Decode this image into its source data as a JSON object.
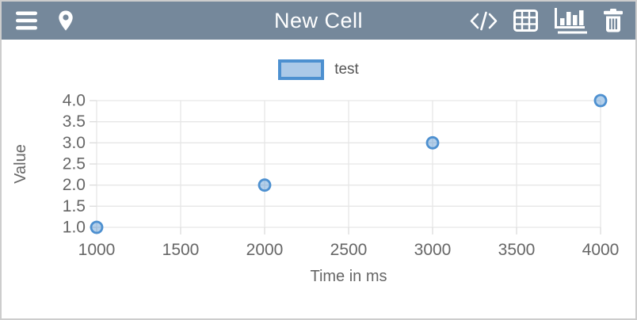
{
  "header": {
    "title": "New Cell",
    "background": "#75889b",
    "left_icons": [
      {
        "name": "menu"
      },
      {
        "name": "location-pin"
      }
    ],
    "right_icons": [
      {
        "name": "code"
      },
      {
        "name": "table"
      },
      {
        "name": "bar-chart",
        "active": true
      },
      {
        "name": "trash"
      }
    ]
  },
  "legend": {
    "label": "test",
    "box_border": "#4d90d0",
    "box_fill": "#abc9e8"
  },
  "chart_data": {
    "type": "scatter",
    "series": [
      {
        "name": "test",
        "points": [
          {
            "x": 1000,
            "y": 1
          },
          {
            "x": 2000,
            "y": 2
          },
          {
            "x": 3000,
            "y": 3
          },
          {
            "x": 4000,
            "y": 4
          }
        ]
      }
    ],
    "xlabel": "Time in ms",
    "ylabel": "Value",
    "xlim": [
      1000,
      4000
    ],
    "ylim": [
      1,
      4
    ],
    "x_tick_labels": [
      "1000",
      "1500",
      "2000",
      "2500",
      "3000",
      "3500",
      "4000"
    ],
    "y_tick_labels": [
      "4.0",
      "3.5",
      "3.0",
      "2.5",
      "2.0",
      "1.5",
      "1.0"
    ],
    "grid": true,
    "legend_position": "top",
    "point_color": "#4d90d0",
    "point_fill": "rgba(77,144,208,0.42)",
    "grid_color": "#e6e6e6",
    "tick_color": "#dcdcdc",
    "label_color": "#666666"
  }
}
